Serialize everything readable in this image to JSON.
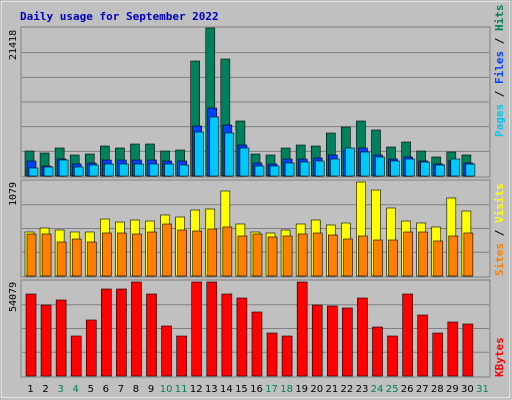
{
  "title": "Daily usage for September 2022",
  "colors": {
    "frame": "#c0c0c0",
    "plot_bg": "#c0c0c0",
    "title": "#0000c0",
    "hits": "#00805c",
    "files": "#0040ff",
    "pages": "#00c8f8",
    "visits": "#ffff00",
    "sites": "#ff8000",
    "kbytes": "#ff0000",
    "weekend_day": "#00805c",
    "weekday": "#000000"
  },
  "chart_data": [
    {
      "type": "bar",
      "panel": "hits-files-pages",
      "ymax_label": "21418",
      "ylim": [
        0,
        21418
      ],
      "right_label_parts": [
        "Pages",
        "Files",
        "Hits"
      ],
      "categories": [
        "1",
        "2",
        "3",
        "4",
        "5",
        "6",
        "7",
        "8",
        "9",
        "10",
        "11",
        "12",
        "13",
        "14",
        "15",
        "16",
        "17",
        "18",
        "19",
        "20",
        "21",
        "22",
        "23",
        "24",
        "25",
        "26",
        "27",
        "28",
        "29",
        "30",
        "31"
      ],
      "series": [
        {
          "name": "Hits",
          "values": [
            3600,
            3300,
            4100,
            3100,
            3200,
            4400,
            4100,
            4600,
            4600,
            3600,
            3700,
            16700,
            21418,
            16900,
            7900,
            3200,
            3100,
            4100,
            4500,
            4400,
            6200,
            7100,
            8000,
            6700,
            4200,
            4900,
            3600,
            2700,
            3500,
            3100,
            0
          ]
        },
        {
          "name": "Files",
          "values": [
            2100,
            1500,
            2500,
            1700,
            1900,
            2300,
            2300,
            2300,
            2300,
            2100,
            2100,
            7300,
            9800,
            7400,
            4500,
            1900,
            1800,
            2400,
            2400,
            2600,
            3000,
            3800,
            4100,
            3100,
            2500,
            2700,
            2100,
            1700,
            2200,
            1900,
            0
          ]
        },
        {
          "name": "Pages",
          "values": [
            1200,
            1300,
            2300,
            1300,
            1600,
            1800,
            1700,
            1800,
            1800,
            1700,
            1600,
            6400,
            8500,
            6200,
            4000,
            1400,
            1500,
            1900,
            2000,
            2100,
            2500,
            4100,
            3500,
            2800,
            2200,
            2400,
            2000,
            1600,
            2400,
            1700,
            0
          ]
        }
      ]
    },
    {
      "type": "bar",
      "panel": "visits-sites",
      "ymax_label": "1079",
      "ylim": [
        0,
        1079
      ],
      "right_label_parts": [
        "Sites",
        "Visits"
      ],
      "categories": [
        "1",
        "2",
        "3",
        "4",
        "5",
        "6",
        "7",
        "8",
        "9",
        "10",
        "11",
        "12",
        "13",
        "14",
        "15",
        "16",
        "17",
        "18",
        "19",
        "20",
        "21",
        "22",
        "23",
        "24",
        "25",
        "26",
        "27",
        "28",
        "29",
        "30",
        "31"
      ],
      "series": [
        {
          "name": "Visits",
          "values": [
            500,
            550,
            530,
            510,
            500,
            650,
            620,
            640,
            630,
            700,
            680,
            760,
            770,
            970,
            600,
            500,
            490,
            530,
            600,
            640,
            580,
            610,
            1079,
            990,
            780,
            630,
            610,
            560,
            900,
            750,
            0
          ]
        },
        {
          "name": "Sites",
          "values": [
            480,
            480,
            390,
            420,
            390,
            490,
            490,
            480,
            510,
            600,
            530,
            520,
            540,
            560,
            460,
            480,
            450,
            460,
            480,
            490,
            470,
            420,
            460,
            410,
            410,
            510,
            500,
            400,
            460,
            490,
            0
          ]
        }
      ]
    },
    {
      "type": "bar",
      "panel": "kbytes",
      "ymax_label": "54079",
      "ylim": [
        0,
        54079
      ],
      "right_label_parts": [
        "KBytes"
      ],
      "categories": [
        "1",
        "2",
        "3",
        "4",
        "5",
        "6",
        "7",
        "8",
        "9",
        "10",
        "11",
        "12",
        "13",
        "14",
        "15",
        "16",
        "17",
        "18",
        "19",
        "20",
        "21",
        "22",
        "23",
        "24",
        "25",
        "26",
        "27",
        "28",
        "29",
        "30",
        "31"
      ],
      "series": [
        {
          "name": "KBytes",
          "values": [
            47000,
            41000,
            44000,
            23000,
            32000,
            50000,
            50000,
            54079,
            47000,
            29000,
            23000,
            54079,
            54079,
            47000,
            45000,
            37000,
            25000,
            23000,
            54079,
            41000,
            40000,
            39000,
            45000,
            28000,
            23000,
            47000,
            35000,
            25000,
            31000,
            30000,
            0
          ]
        }
      ]
    }
  ]
}
